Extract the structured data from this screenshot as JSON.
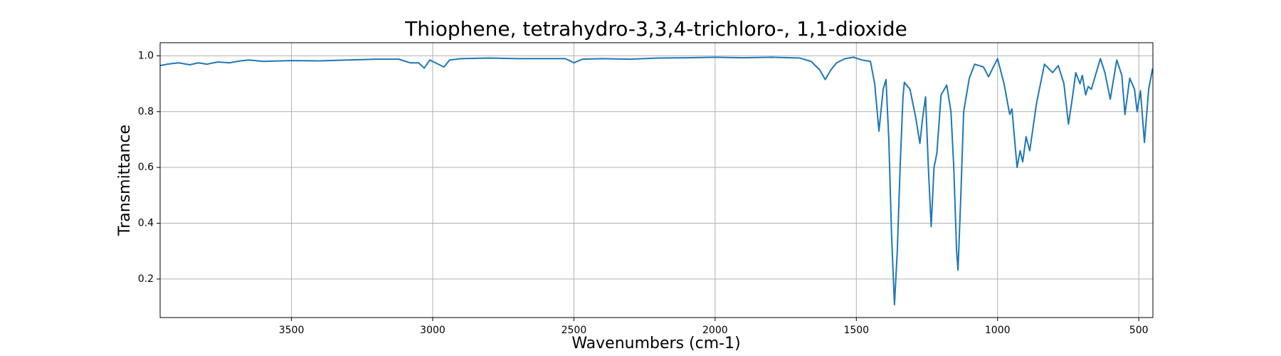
{
  "chart_data": {
    "type": "line",
    "title": "Thiophene, tetrahydro-3,3,4-trichloro-, 1,1-dioxide",
    "xlabel": "Wavenumbers (cm-1)",
    "ylabel": "Transmittance",
    "xlim": [
      3965,
      450
    ],
    "ylim": [
      0.062,
      1.047
    ],
    "xticks": [
      3500,
      3000,
      2500,
      2000,
      1500,
      1000,
      500
    ],
    "yticks": [
      0.2,
      0.4,
      0.6,
      0.8,
      {
        "value": 1,
        "label": "1.0"
      }
    ],
    "grid": true,
    "series": [
      {
        "name": "Transmittance",
        "color": "#1f77b4",
        "x": [
          3965,
          3940,
          3900,
          3860,
          3830,
          3800,
          3760,
          3720,
          3680,
          3650,
          3600,
          3500,
          3400,
          3300,
          3200,
          3120,
          3080,
          3050,
          3030,
          3010,
          2990,
          2960,
          2940,
          2900,
          2800,
          2700,
          2600,
          2530,
          2500,
          2470,
          2400,
          2300,
          2200,
          2100,
          2000,
          1900,
          1800,
          1700,
          1660,
          1630,
          1610,
          1590,
          1570,
          1540,
          1510,
          1480,
          1450,
          1435,
          1420,
          1405,
          1395,
          1385,
          1375,
          1365,
          1355,
          1345,
          1335,
          1330,
          1310,
          1290,
          1275,
          1265,
          1255,
          1245,
          1235,
          1225,
          1215,
          1200,
          1180,
          1165,
          1155,
          1145,
          1140,
          1130,
          1120,
          1100,
          1081,
          1050,
          1032,
          1015,
          1000,
          977,
          957,
          949,
          931,
          920,
          911,
          899,
          886,
          862,
          834,
          805,
          785,
          765,
          749,
          735,
          723,
          708,
          700,
          688,
          679,
          668,
          636,
          620,
          601,
          578,
          560,
          549,
          532,
          515,
          506,
          494,
          480,
          465,
          451
        ],
        "values": [
          0.965,
          0.97,
          0.975,
          0.968,
          0.975,
          0.97,
          0.978,
          0.975,
          0.982,
          0.985,
          0.98,
          0.983,
          0.982,
          0.985,
          0.988,
          0.988,
          0.975,
          0.975,
          0.956,
          0.985,
          0.975,
          0.96,
          0.985,
          0.99,
          0.992,
          0.99,
          0.99,
          0.99,
          0.975,
          0.988,
          0.99,
          0.988,
          0.992,
          0.993,
          0.995,
          0.993,
          0.995,
          0.992,
          0.98,
          0.95,
          0.915,
          0.95,
          0.975,
          0.99,
          0.995,
          0.985,
          0.98,
          0.9,
          0.73,
          0.88,
          0.915,
          0.7,
          0.35,
          0.108,
          0.3,
          0.6,
          0.85,
          0.905,
          0.88,
          0.78,
          0.686,
          0.78,
          0.853,
          0.6,
          0.388,
          0.6,
          0.65,
          0.86,
          0.895,
          0.8,
          0.6,
          0.3,
          0.232,
          0.5,
          0.8,
          0.92,
          0.97,
          0.96,
          0.925,
          0.96,
          0.99,
          0.9,
          0.79,
          0.81,
          0.6,
          0.66,
          0.62,
          0.71,
          0.66,
          0.83,
          0.97,
          0.94,
          0.965,
          0.9,
          0.755,
          0.85,
          0.94,
          0.9,
          0.93,
          0.86,
          0.89,
          0.88,
          0.99,
          0.94,
          0.845,
          0.985,
          0.93,
          0.79,
          0.92,
          0.88,
          0.8,
          0.875,
          0.69,
          0.88,
          0.955
        ]
      }
    ]
  }
}
